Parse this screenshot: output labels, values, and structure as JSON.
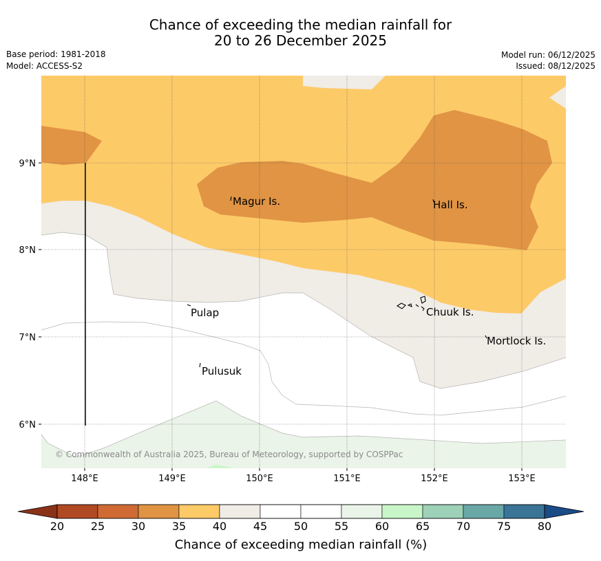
{
  "title": {
    "line1": "Chance of exceeding the median rainfall for",
    "line2": "20 to 26 December 2025"
  },
  "meta": {
    "base_period": "Base period: 1981-2018",
    "model": "Model: ACCESS-S2",
    "model_run": "Model run: 06/12/2025",
    "issued": "Issued: 08/12/2025"
  },
  "map": {
    "lat_labels": [
      "9°N",
      "8°N",
      "7°N",
      "6°N"
    ],
    "lon_labels": [
      "148°E",
      "149°E",
      "150°E",
      "151°E",
      "152°E",
      "153°E"
    ],
    "places": [
      {
        "name": "Magur Is."
      },
      {
        "name": "Hall Is."
      },
      {
        "name": "Pulap"
      },
      {
        "name": "Chuuk Is."
      },
      {
        "name": "Mortlock Is."
      },
      {
        "name": "Pulusuk"
      }
    ],
    "copyright": "© Commonwealth of Australia 2025, Bureau of Meteorology, supported by COSPPac"
  },
  "colorbar": {
    "label": "Chance of exceeding median rainfall (%)",
    "ticks": [
      "20",
      "25",
      "30",
      "35",
      "40",
      "45",
      "50",
      "55",
      "60",
      "65",
      "70",
      "75",
      "80"
    ],
    "colors": [
      "#b04a24",
      "#cf6a34",
      "#e09444",
      "#fdca68",
      "#f0ece6",
      "#ffffff",
      "#ffffff",
      "#eaf4e8",
      "#c8f6c8",
      "#9dd1b8",
      "#6aa8a8",
      "#3a7496"
    ],
    "low_extend_color": "#8a3218",
    "high_extend_color": "#1a4c86"
  }
}
